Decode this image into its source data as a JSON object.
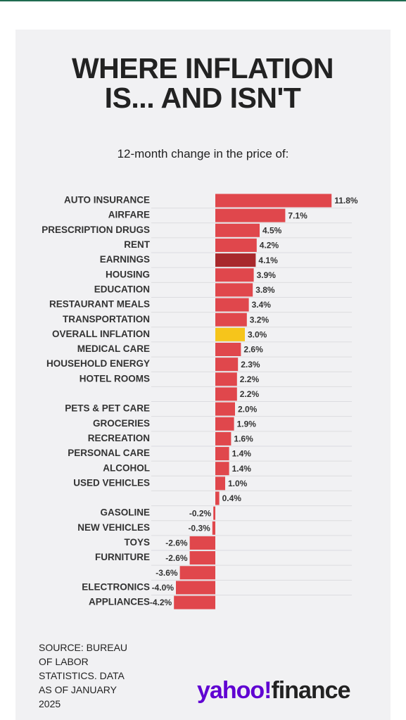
{
  "chart_data": {
    "type": "hbar",
    "title": "WHERE INFLATION IS... AND ISN'T",
    "subtitle": "12-month change in the price of:",
    "categories": [
      "AUTO INSURANCE",
      "AIRFARE",
      "PRESCRIPTION DRUGS",
      "RENT",
      "EARNINGS",
      "HOUSING",
      "EDUCATION",
      "RESTAURANT MEALS",
      "TRANSPORTATION",
      "OVERALL INFLATION",
      "MEDICAL CARE",
      "HOUSEHOLD ENERGY",
      "HOTEL ROOMS",
      null,
      "PETS & PET CARE",
      "GROCERIES",
      "RECREATION",
      "PERSONAL CARE",
      "ALCOHOL",
      "USED VEHICLES",
      null,
      "GASOLINE",
      "NEW VEHICLES",
      "TOYS",
      "FURNITURE",
      null,
      "ELECTRONICS",
      "APPLIANCES"
    ],
    "values": [
      11.8,
      7.1,
      4.5,
      4.2,
      4.1,
      3.9,
      3.8,
      3.4,
      3.2,
      3.0,
      2.6,
      2.3,
      2.2,
      2.2,
      2.0,
      1.9,
      1.6,
      1.4,
      1.4,
      1.0,
      0.4,
      -0.2,
      -0.3,
      -2.6,
      -2.6,
      -3.6,
      -4.0,
      -4.2
    ],
    "value_labels": [
      "11.8%",
      "7.1%",
      "4.5%",
      "4.2%",
      "4.1%",
      "3.9%",
      "3.8%",
      "3.4%",
      "3.2%",
      "3.0%",
      "2.6%",
      "2.3%",
      "2.2%",
      "2.2%",
      "2.0%",
      "1.9%",
      "1.6%",
      "1.4%",
      "1.4%",
      "1.0%",
      "0.4%",
      "-0.2%",
      "-0.3%",
      "-2.6%",
      "-2.6%",
      "-3.6%",
      "-4.0%",
      "-4.2%"
    ],
    "colors": [
      "#e0474c",
      "#e0474c",
      "#e0474c",
      "#e0474c",
      "#a8282c",
      "#e0474c",
      "#e0474c",
      "#e0474c",
      "#e0474c",
      "#f6c51b",
      "#e0474c",
      "#e0474c",
      "#e0474c",
      "#e0474c",
      "#e0474c",
      "#e0474c",
      "#e0474c",
      "#e0474c",
      "#e0474c",
      "#e0474c",
      "#e0474c",
      "#e0474c",
      "#e0474c",
      "#e0474c",
      "#e0474c",
      "#e0474c",
      "#e0474c",
      "#e0474c"
    ],
    "xlim": [
      -4.2,
      11.8
    ],
    "source": "SOURCE: BUREAU OF LABOR STATISTICS. DATA AS OF JANUARY 2025",
    "logo": {
      "brand": "yahoo!",
      "product": "finance"
    }
  }
}
